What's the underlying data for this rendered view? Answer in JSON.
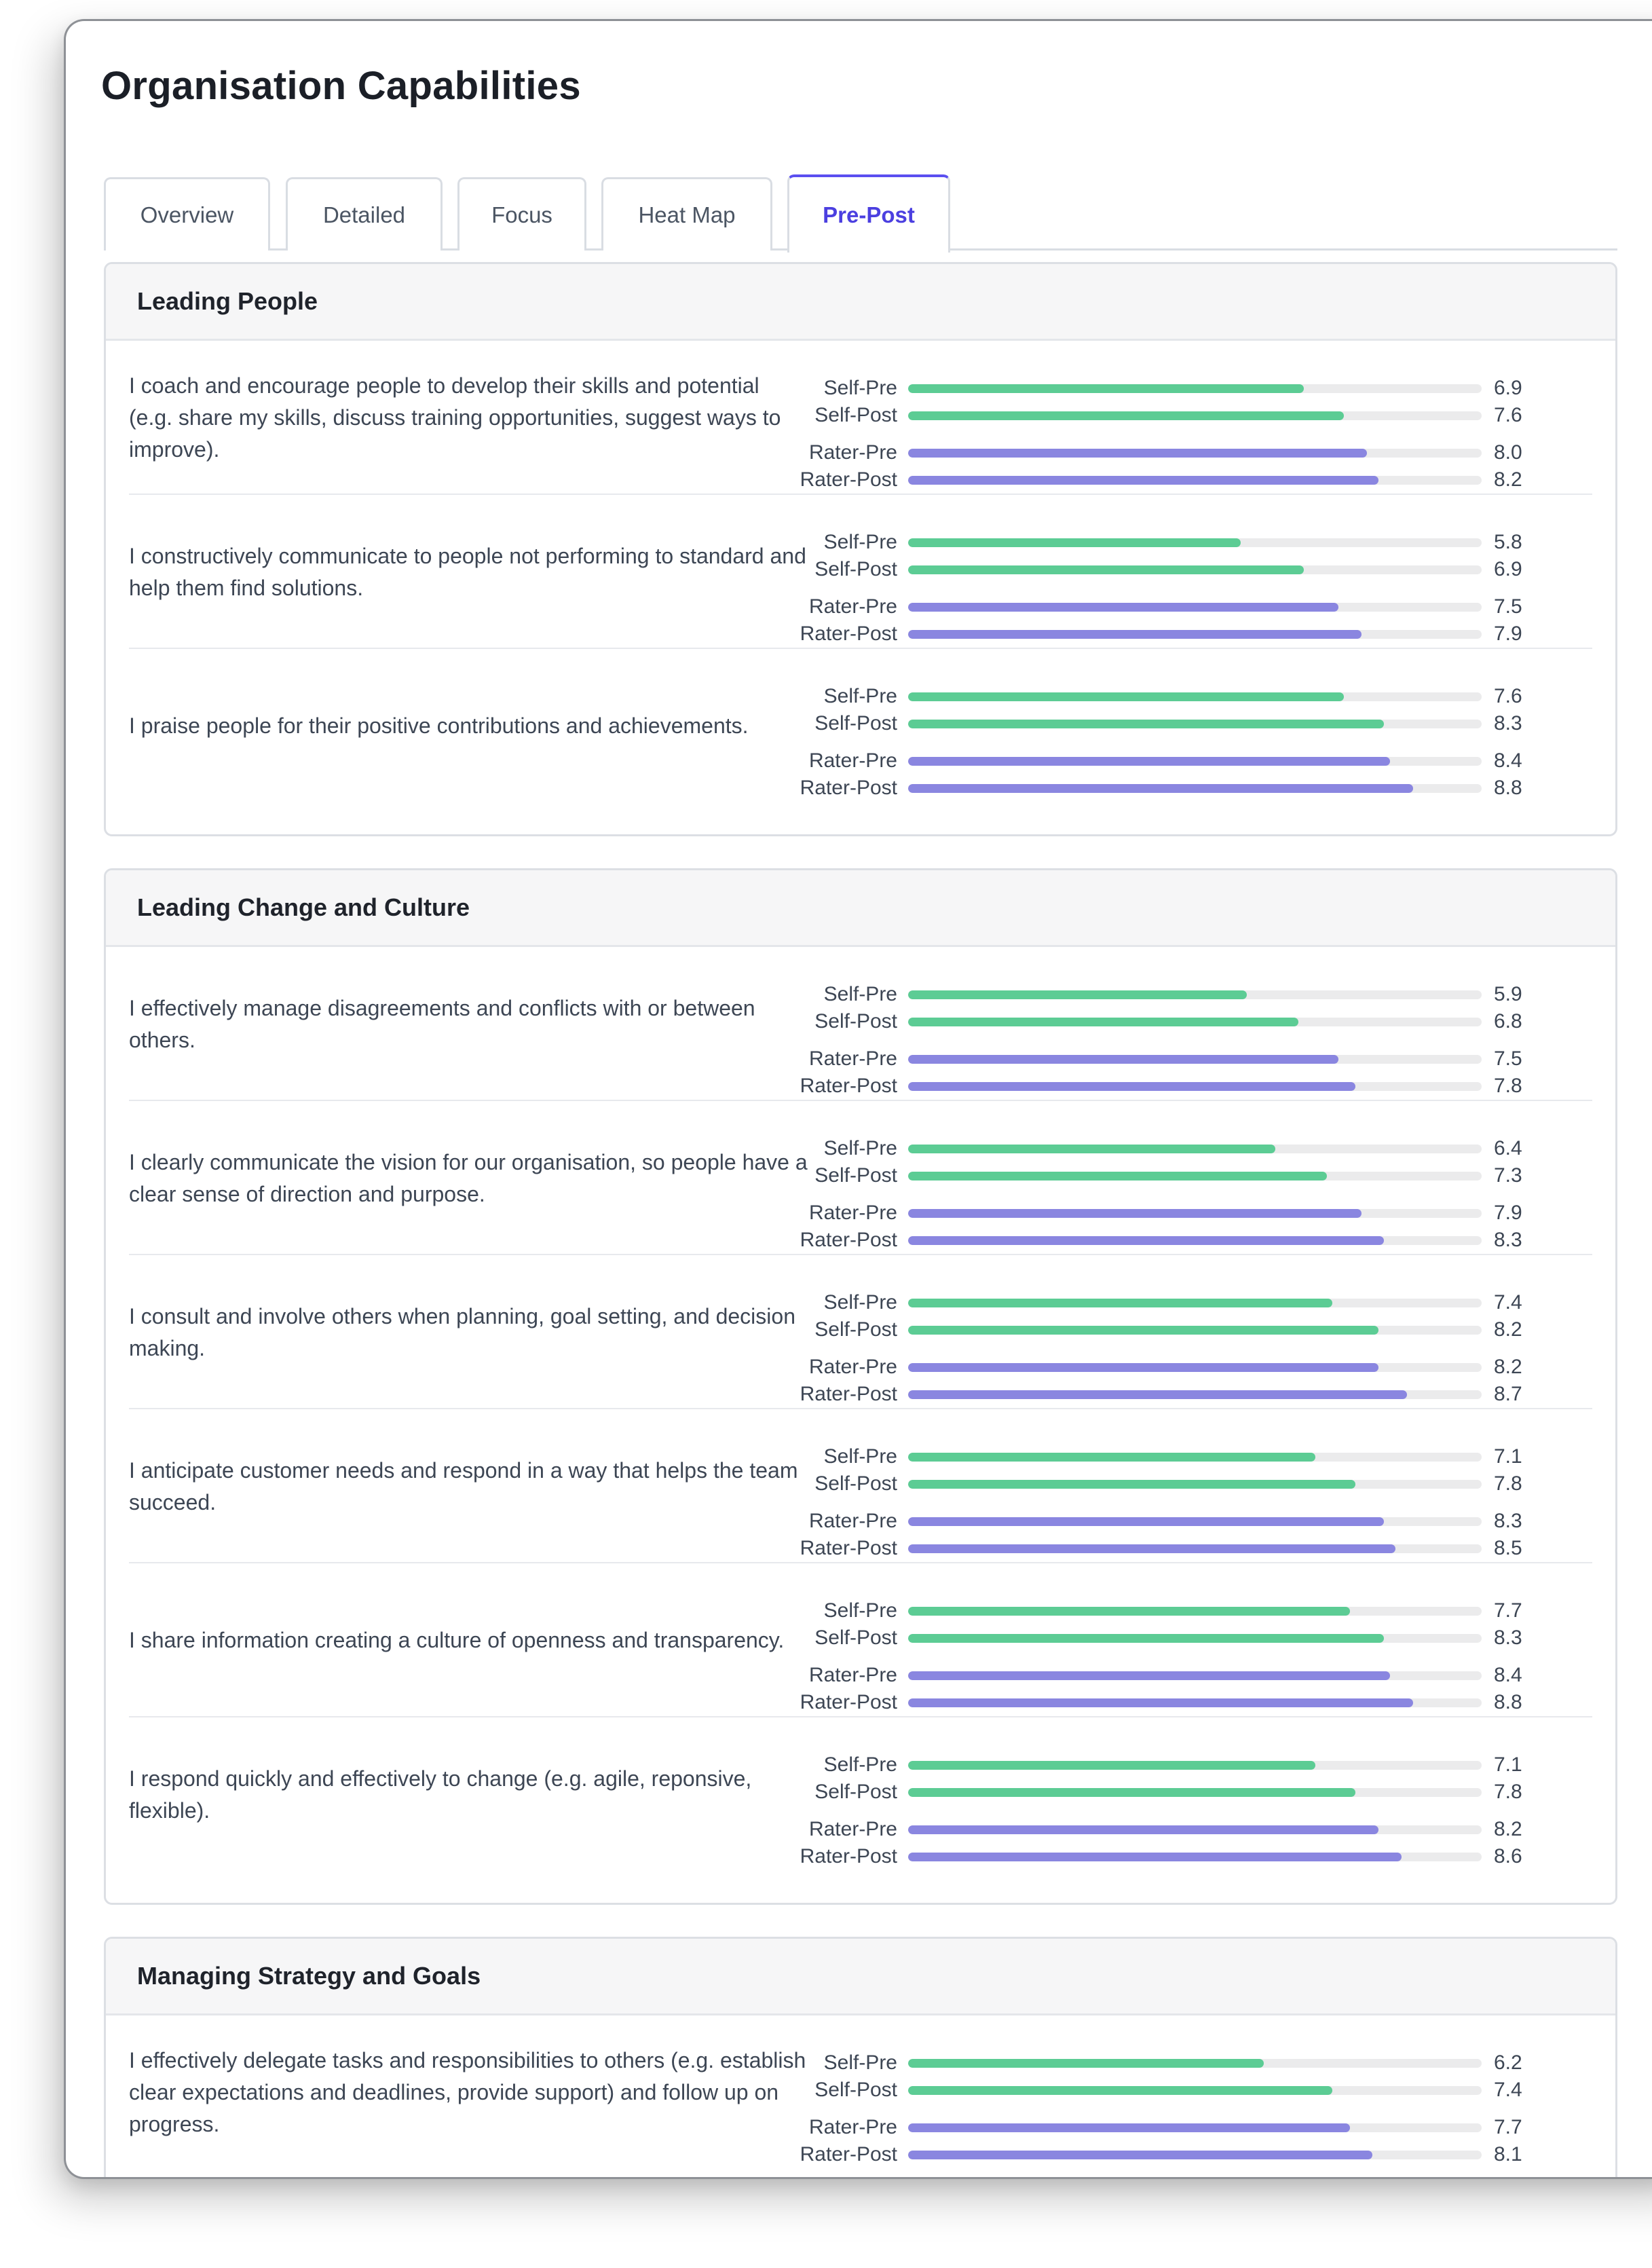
{
  "page": {
    "title": "Organisation Capabilities"
  },
  "tabs": [
    {
      "label": "Overview",
      "active": false
    },
    {
      "label": "Detailed",
      "active": false
    },
    {
      "label": "Focus",
      "active": false
    },
    {
      "label": "Heat Map",
      "active": false
    },
    {
      "label": "Pre-Post",
      "active": true
    }
  ],
  "scale_max": 10,
  "colors": {
    "self": "#5ccc94",
    "rater": "#8a86e0",
    "track": "#ebebec",
    "accent": "#4b3fe0"
  },
  "bar_labels": [
    "Self-Pre",
    "Self-Post",
    "Rater-Pre",
    "Rater-Post"
  ],
  "sections": [
    {
      "title": "Leading People",
      "items": [
        {
          "text": "I coach and encourage people to develop their skills and potential (e.g. share my skills, discuss training opportunities, suggest ways to improve).",
          "scores": {
            "self_pre": 6.9,
            "self_post": 7.6,
            "rater_pre": 8.0,
            "rater_post": 8.2
          },
          "display": [
            "6.9",
            "7.6",
            "8.0",
            "8.2"
          ]
        },
        {
          "text": "I constructively communicate to people not performing to standard and help them find solutions.",
          "scores": {
            "self_pre": 5.8,
            "self_post": 6.9,
            "rater_pre": 7.5,
            "rater_post": 7.9
          },
          "display": [
            "5.8",
            "6.9",
            "7.5",
            "7.9"
          ]
        },
        {
          "text": "I praise people for their positive contributions and achievements.",
          "scores": {
            "self_pre": 7.6,
            "self_post": 8.3,
            "rater_pre": 8.4,
            "rater_post": 8.8
          },
          "display": [
            "7.6",
            "8.3",
            "8.4",
            "8.8"
          ]
        }
      ]
    },
    {
      "title": "Leading Change and Culture",
      "items": [
        {
          "text": "I effectively manage disagreements and conflicts with or between others.",
          "scores": {
            "self_pre": 5.9,
            "self_post": 6.8,
            "rater_pre": 7.5,
            "rater_post": 7.8
          },
          "display": [
            "5.9",
            "6.8",
            "7.5",
            "7.8"
          ]
        },
        {
          "text": "I clearly communicate the vision for our organisation, so people have a clear sense of direction and purpose.",
          "scores": {
            "self_pre": 6.4,
            "self_post": 7.3,
            "rater_pre": 7.9,
            "rater_post": 8.3
          },
          "display": [
            "6.4",
            "7.3",
            "7.9",
            "8.3"
          ]
        },
        {
          "text": "I consult and involve others when planning, goal setting, and decision making.",
          "scores": {
            "self_pre": 7.4,
            "self_post": 8.2,
            "rater_pre": 8.2,
            "rater_post": 8.7
          },
          "display": [
            "7.4",
            "8.2",
            "8.2",
            "8.7"
          ]
        },
        {
          "text": "I anticipate customer needs and respond in a way that helps the team succeed.",
          "scores": {
            "self_pre": 7.1,
            "self_post": 7.8,
            "rater_pre": 8.3,
            "rater_post": 8.5
          },
          "display": [
            "7.1",
            "7.8",
            "8.3",
            "8.5"
          ]
        },
        {
          "text": "I share information creating a culture of openness and transparency.",
          "scores": {
            "self_pre": 7.7,
            "self_post": 8.3,
            "rater_pre": 8.4,
            "rater_post": 8.8
          },
          "display": [
            "7.7",
            "8.3",
            "8.4",
            "8.8"
          ]
        },
        {
          "text": "I respond quickly and effectively to change (e.g. agile, reponsive, flexible).",
          "scores": {
            "self_pre": 7.1,
            "self_post": 7.8,
            "rater_pre": 8.2,
            "rater_post": 8.6
          },
          "display": [
            "7.1",
            "7.8",
            "8.2",
            "8.6"
          ]
        }
      ]
    },
    {
      "title": "Managing Strategy and Goals",
      "items": [
        {
          "text": "I effectively delegate tasks and responsibilities to others (e.g. establish clear expectations and deadlines, provide support) and follow up on progress.",
          "scores": {
            "self_pre": 6.2,
            "self_post": 7.4,
            "rater_pre": 7.7,
            "rater_post": 8.1
          },
          "display": [
            "6.2",
            "7.4",
            "7.7",
            "8.1"
          ]
        }
      ]
    }
  ]
}
